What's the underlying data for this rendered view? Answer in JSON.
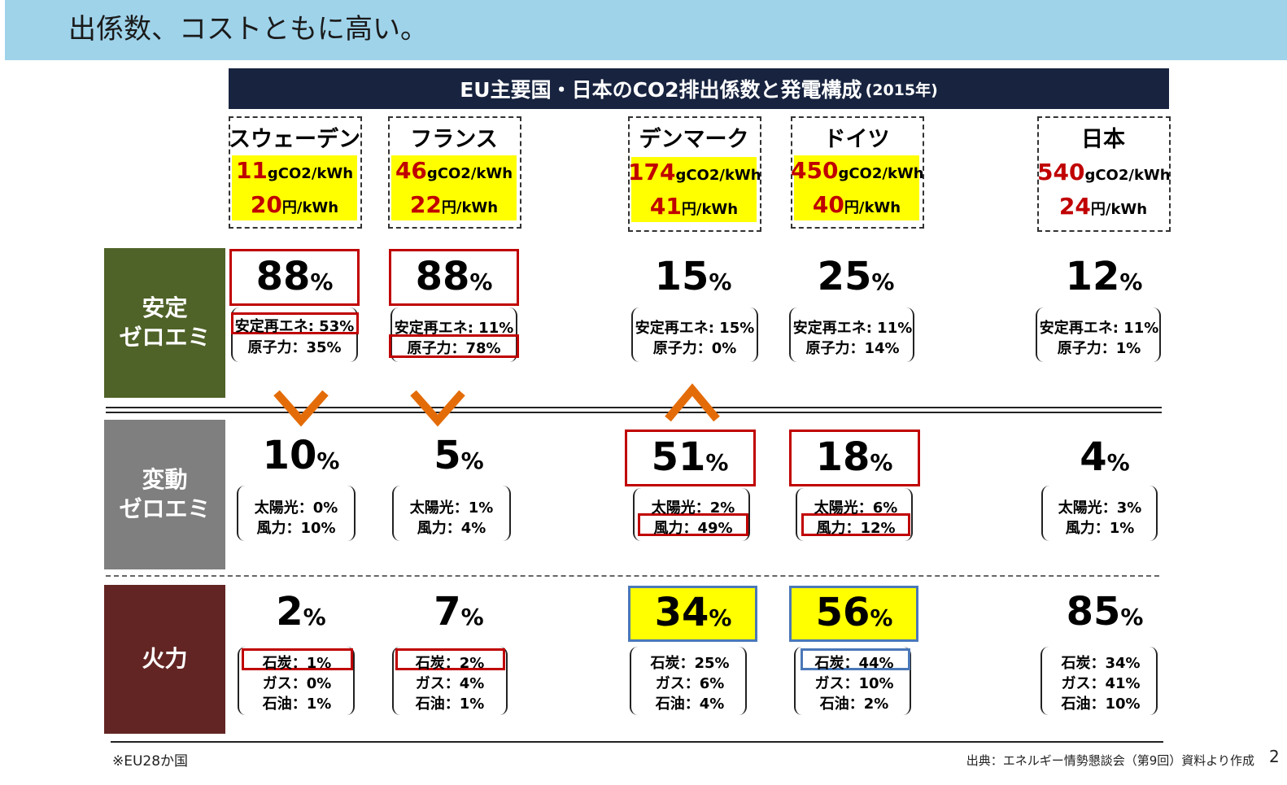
{
  "header": {
    "banner_text": "出係数、コストともに高い。",
    "chart_title": "EU主要国・日本のCO2排出係数と発電構成",
    "chart_title_year": "(2015年)"
  },
  "units": {
    "emission": "gCO2/kWh",
    "cost": "円/kWh",
    "percent": "%"
  },
  "categories": {
    "stable": [
      "安定",
      "ゼロエミ"
    ],
    "variable": [
      "変動",
      "ゼロエミ"
    ],
    "thermal": [
      "火力"
    ]
  },
  "countries": [
    {
      "name": "スウェーデン",
      "emission": "11",
      "cost": "20",
      "stable_total": "88",
      "stable_lines": [
        "安定再エネ: 53%",
        "原子力：35%"
      ],
      "variable_total": "10",
      "variable_lines": [
        "太陽光：0%",
        "風力：10%"
      ],
      "thermal_total": "2",
      "thermal_lines": [
        "石炭：1%",
        "ガス：0%",
        "石油：1%"
      ]
    },
    {
      "name": "フランス",
      "emission": "46",
      "cost": "22",
      "stable_total": "88",
      "stable_lines": [
        "安定再エネ: 11%",
        "原子力：78%"
      ],
      "variable_total": "5",
      "variable_lines": [
        "太陽光：1%",
        "風力：4%"
      ],
      "thermal_total": "7",
      "thermal_lines": [
        "石炭：2%",
        "ガス：4%",
        "石油：1%"
      ]
    },
    {
      "name": "デンマーク",
      "emission": "174",
      "cost": "41",
      "stable_total": "15",
      "stable_lines": [
        "安定再エネ: 15%",
        "原子力：0%"
      ],
      "variable_total": "51",
      "variable_lines": [
        "太陽光：2%",
        "風力：49%"
      ],
      "thermal_total": "34",
      "thermal_lines": [
        "石炭：25%",
        "ガス：6%",
        "石油：4%"
      ]
    },
    {
      "name": "ドイツ",
      "emission": "450",
      "cost": "40",
      "stable_total": "25",
      "stable_lines": [
        "安定再エネ: 11%",
        "原子力：14%"
      ],
      "variable_total": "18",
      "variable_lines": [
        "太陽光：6%",
        "風力：12%"
      ],
      "thermal_total": "56",
      "thermal_lines": [
        "石炭：44%",
        "ガス：10%",
        "石油：2%"
      ]
    },
    {
      "name": "日本",
      "emission": "540",
      "cost": "24",
      "stable_total": "12",
      "stable_lines": [
        "安定再エネ: 11%",
        "原子力：1%"
      ],
      "variable_total": "4",
      "variable_lines": [
        "太陽光：3%",
        "風力：1%"
      ],
      "thermal_total": "85",
      "thermal_lines": [
        "石炭：34%",
        "ガス：41%",
        "石油：10%"
      ]
    }
  ],
  "chart_data": {
    "type": "table",
    "title": "EU主要国・日本のCO2排出係数と発電構成 (2015年)",
    "columns": [
      "スウェーデン",
      "フランス",
      "デンマーク",
      "ドイツ",
      "日本"
    ],
    "emission_gCO2_per_kWh": [
      11,
      46,
      174,
      450,
      540
    ],
    "cost_yen_per_kWh": [
      20,
      22,
      41,
      40,
      24
    ],
    "stable_zero_emission_pct": [
      88,
      88,
      15,
      25,
      12
    ],
    "stable_renewables_pct": [
      53,
      11,
      15,
      11,
      11
    ],
    "nuclear_pct": [
      35,
      78,
      0,
      14,
      1
    ],
    "variable_zero_emission_pct": [
      10,
      5,
      51,
      18,
      4
    ],
    "solar_pct": [
      0,
      1,
      2,
      6,
      3
    ],
    "wind_pct": [
      10,
      4,
      49,
      12,
      1
    ],
    "thermal_pct": [
      2,
      7,
      34,
      56,
      85
    ],
    "coal_pct": [
      1,
      2,
      25,
      44,
      34
    ],
    "gas_pct": [
      0,
      4,
      6,
      10,
      41
    ],
    "oil_pct": [
      1,
      1,
      4,
      2,
      10
    ]
  },
  "footer": {
    "footnote": "※EU28か国",
    "source": "出典：エネルギー情勢懇談会（第9回）資料より作成",
    "page_number": "2"
  },
  "colors": {
    "banner": "#9fd3ea",
    "title_bar": "#17233f",
    "stable": "#4f6228",
    "variable": "#7f7f7f",
    "thermal": "#632523",
    "highlight_red": "#c00000",
    "highlight_yellow": "#ffff00",
    "highlight_blue": "#4a78b8",
    "arrow": "#e36c09"
  }
}
